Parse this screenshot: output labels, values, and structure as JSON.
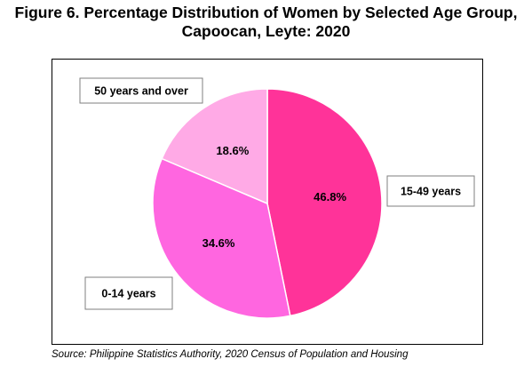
{
  "title_line1": "Figure 6. Percentage Distribution of Women by Selected Age Group,",
  "title_line2": "Capoocan, Leyte: 2020",
  "source": "Source: Philippine Statistics Authority, 2020 Census of Population and Housing",
  "chart_data": {
    "type": "pie",
    "title": "Figure 6. Percentage Distribution of Women by Selected Age Group, Capoocan, Leyte: 2020",
    "slices": [
      {
        "label": "15-49 years",
        "value": 46.8,
        "display": "46.8%",
        "color": "#ff3399"
      },
      {
        "label": "0-14 years",
        "value": 34.6,
        "display": "34.6%",
        "color": "#ff66e0"
      },
      {
        "label": "50 years and over",
        "value": 18.6,
        "display": "18.6%",
        "color": "#ffaae6"
      }
    ],
    "start_angle_deg": 0,
    "direction": "clockwise",
    "legend": "none"
  }
}
